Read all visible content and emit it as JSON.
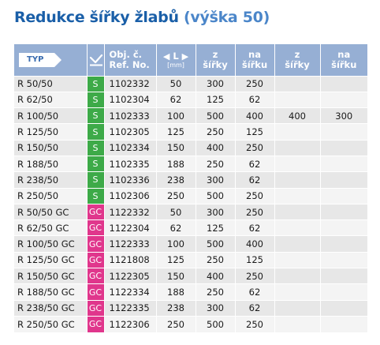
{
  "title": {
    "main": "Redukce šířky žlabů",
    "sub": "(výška 50)"
  },
  "colors": {
    "title_main": "#1a5fa8",
    "title_sub": "#4b86c9",
    "header_bg": "#96afd4",
    "tag_s": "#3daa48",
    "tag_gc": "#e0368c"
  },
  "table": {
    "headers": {
      "typ": "TYP",
      "check_icon": "check-mark-icon",
      "objc_line1": "Obj. č.",
      "objc_line2": "Ref. No.",
      "l_label": "L",
      "l_unit": "[mm]",
      "z_sirky_1": "z",
      "z_sirky_2": "šířky",
      "na_sirku_1": "na",
      "na_sirku_2": "šířku",
      "z_sirky2_1": "z",
      "z_sirky2_2": "šířky",
      "na_sirku2_1": "na",
      "na_sirku2_2": "šířku"
    },
    "rows": [
      {
        "typ": "R 50/50",
        "code": "S",
        "ref": "1102332",
        "l": "50",
        "z": "300",
        "na": "250",
        "z2": "",
        "na2": ""
      },
      {
        "typ": "R 62/50",
        "code": "S",
        "ref": "1102304",
        "l": "62",
        "z": "125",
        "na": "62",
        "z2": "",
        "na2": ""
      },
      {
        "typ": "R 100/50",
        "code": "S",
        "ref": "1102333",
        "l": "100",
        "z": "500",
        "na": "400",
        "z2": "400",
        "na2": "300"
      },
      {
        "typ": "R 125/50",
        "code": "S",
        "ref": "1102305",
        "l": "125",
        "z": "250",
        "na": "125",
        "z2": "",
        "na2": ""
      },
      {
        "typ": "R 150/50",
        "code": "S",
        "ref": "1102334",
        "l": "150",
        "z": "400",
        "na": "250",
        "z2": "",
        "na2": ""
      },
      {
        "typ": "R 188/50",
        "code": "S",
        "ref": "1102335",
        "l": "188",
        "z": "250",
        "na": "62",
        "z2": "",
        "na2": ""
      },
      {
        "typ": "R 238/50",
        "code": "S",
        "ref": "1102336",
        "l": "238",
        "z": "300",
        "na": "62",
        "z2": "",
        "na2": ""
      },
      {
        "typ": "R 250/50",
        "code": "S",
        "ref": "1102306",
        "l": "250",
        "z": "500",
        "na": "250",
        "z2": "",
        "na2": ""
      },
      {
        "typ": "R 50/50 GC",
        "code": "GC",
        "ref": "1122332",
        "l": "50",
        "z": "300",
        "na": "250",
        "z2": "",
        "na2": ""
      },
      {
        "typ": "R 62/50 GC",
        "code": "GC",
        "ref": "1122304",
        "l": "62",
        "z": "125",
        "na": "62",
        "z2": "",
        "na2": ""
      },
      {
        "typ": "R 100/50 GC",
        "code": "GC",
        "ref": "1122333",
        "l": "100",
        "z": "500",
        "na": "400",
        "z2": "",
        "na2": ""
      },
      {
        "typ": "R 125/50 GC",
        "code": "GC",
        "ref": "1121808",
        "l": "125",
        "z": "250",
        "na": "125",
        "z2": "",
        "na2": ""
      },
      {
        "typ": "R 150/50 GC",
        "code": "GC",
        "ref": "1122305",
        "l": "150",
        "z": "400",
        "na": "250",
        "z2": "",
        "na2": ""
      },
      {
        "typ": "R 188/50 GC",
        "code": "GC",
        "ref": "1122334",
        "l": "188",
        "z": "250",
        "na": "62",
        "z2": "",
        "na2": ""
      },
      {
        "typ": "R 238/50 GC",
        "code": "GC",
        "ref": "1122335",
        "l": "238",
        "z": "300",
        "na": "62",
        "z2": "",
        "na2": ""
      },
      {
        "typ": "R 250/50 GC",
        "code": "GC",
        "ref": "1122306",
        "l": "250",
        "z": "500",
        "na": "250",
        "z2": "",
        "na2": ""
      }
    ]
  }
}
